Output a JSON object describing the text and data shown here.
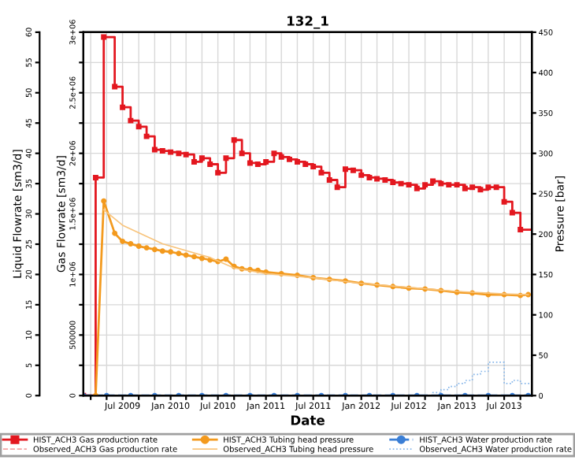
{
  "chart_data": {
    "type": "line",
    "title": "132_1",
    "xlabel": "Date",
    "ylabel": "Gas Flowrate [sm3/d]",
    "y2label": "Pressure [bar]",
    "y3label": "Liquid Flowrate [sm3/d]",
    "xlim": [
      "2009-02-01",
      "2013-10-15"
    ],
    "xticks": [
      {
        "value": "2009-03",
        "label": null
      },
      {
        "value": "2009-05",
        "label": null
      },
      {
        "value": "2009-07",
        "label": "Jul 2009"
      },
      {
        "value": "2009-09",
        "label": null
      },
      {
        "value": "2009-11",
        "label": null
      },
      {
        "value": "2010-01",
        "label": "Jan 2010"
      },
      {
        "value": "2010-03",
        "label": null
      },
      {
        "value": "2010-05",
        "label": null
      },
      {
        "value": "2010-07",
        "label": "Jul 2010"
      },
      {
        "value": "2010-09",
        "label": null
      },
      {
        "value": "2010-11",
        "label": null
      },
      {
        "value": "2011-01",
        "label": "Jan 2011"
      },
      {
        "value": "2011-03",
        "label": null
      },
      {
        "value": "2011-05",
        "label": null
      },
      {
        "value": "2011-07",
        "label": "Jul 2011"
      },
      {
        "value": "2011-09",
        "label": null
      },
      {
        "value": "2011-11",
        "label": null
      },
      {
        "value": "2012-01",
        "label": "Jan 2012"
      },
      {
        "value": "2012-03",
        "label": null
      },
      {
        "value": "2012-05",
        "label": null
      },
      {
        "value": "2012-07",
        "label": "Jul 2012"
      },
      {
        "value": "2012-09",
        "label": null
      },
      {
        "value": "2012-11",
        "label": null
      },
      {
        "value": "2013-01",
        "label": "Jan 2013"
      },
      {
        "value": "2013-03",
        "label": null
      },
      {
        "value": "2013-05",
        "label": null
      },
      {
        "value": "2013-07",
        "label": "Jul 2013"
      },
      {
        "value": "2013-09",
        "label": null
      }
    ],
    "ylim": [
      0,
      3000000
    ],
    "yticks": [
      0,
      {
        "value": 250000,
        "label": null
      },
      500000,
      {
        "value": 750000,
        "label": null
      },
      {
        "value": 1000000,
        "label": "1e+06"
      },
      {
        "value": 1250000,
        "label": null
      },
      {
        "value": 1500000,
        "label": "1.5e+06"
      },
      {
        "value": 1750000,
        "label": null
      },
      {
        "value": 2000000,
        "label": "2e+06"
      },
      {
        "value": 2250000,
        "label": null
      },
      {
        "value": 2500000,
        "label": "2.5e+06"
      },
      {
        "value": 2750000,
        "label": null
      },
      {
        "value": 3000000,
        "label": "3e+06"
      }
    ],
    "y2lim": [
      0,
      450
    ],
    "y2ticks": [
      0,
      50,
      100,
      150,
      200,
      250,
      300,
      350,
      400,
      450
    ],
    "y3lim": [
      0,
      60
    ],
    "y3ticks": [
      0,
      5,
      10,
      15,
      20,
      25,
      30,
      35,
      40,
      45,
      50,
      55,
      60
    ],
    "grid": true,
    "legend": "bottom",
    "series": [
      {
        "name": "HIST_ACH3 Gas production rate",
        "type": "step",
        "axis": "y",
        "color": "#e3171f",
        "marker": "square",
        "line_style": "solid",
        "x": [
          "2009-02-01",
          "2009-03-20",
          "2009-04-20",
          "2009-06-01",
          "2009-07",
          "2009-08",
          "2009-09",
          "2009-10",
          "2009-11",
          "2009-12",
          "2010-01",
          "2010-02",
          "2010-03",
          "2010-04",
          "2010-05",
          "2010-06",
          "2010-07",
          "2010-08",
          "2010-09",
          "2010-10",
          "2010-11",
          "2010-12",
          "2011-01",
          "2011-02",
          "2011-03",
          "2011-04",
          "2011-05",
          "2011-06",
          "2011-07",
          "2011-08",
          "2011-09",
          "2011-10",
          "2011-11",
          "2011-12",
          "2012-01",
          "2012-02",
          "2012-03",
          "2012-04",
          "2012-05",
          "2012-06",
          "2012-07",
          "2012-08",
          "2012-09",
          "2012-10",
          "2012-11",
          "2012-12",
          "2013-01",
          "2013-02",
          "2013-03",
          "2013-04",
          "2013-05",
          "2013-06",
          "2013-07",
          "2013-08",
          "2013-09",
          "2013-10-15"
        ],
        "values": [
          0,
          1800000,
          2960000,
          2550000,
          2380000,
          2270000,
          2220000,
          2140000,
          2030000,
          2020000,
          2010000,
          2000000,
          1990000,
          1930000,
          1960000,
          1910000,
          1840000,
          1960000,
          2110000,
          2000000,
          1920000,
          1910000,
          1930000,
          2000000,
          1970000,
          1950000,
          1930000,
          1910000,
          1890000,
          1840000,
          1780000,
          1720000,
          1870000,
          1860000,
          1820000,
          1800000,
          1790000,
          1780000,
          1760000,
          1750000,
          1740000,
          1710000,
          1740000,
          1770000,
          1750000,
          1740000,
          1740000,
          1710000,
          1720000,
          1700000,
          1720000,
          1720000,
          1600000,
          1510000,
          1370000,
          1370000
        ]
      },
      {
        "name": "Observed_ACH3 Gas production rate",
        "axis": "y",
        "color": "#f4a3a3",
        "marker": "none",
        "line_style": "dashed"
      },
      {
        "name": "HIST_ACH3 Tubing head pressure",
        "axis": "y2",
        "color": "#f39a1e",
        "marker": "circle",
        "line_style": "solid",
        "x": [
          "2009-03-20",
          "2009-04-20",
          "2009-06",
          "2009-07",
          "2009-08",
          "2009-09",
          "2009-10",
          "2009-11",
          "2009-12",
          "2010-01",
          "2010-02",
          "2010-03",
          "2010-04",
          "2010-05",
          "2010-06",
          "2010-07",
          "2010-08",
          "2010-09",
          "2010-10",
          "2010-11",
          "2010-12",
          "2011-01",
          "2011-03",
          "2011-05",
          "2011-07",
          "2011-09",
          "2011-11",
          "2012-01",
          "2012-03",
          "2012-05",
          "2012-07",
          "2012-09",
          "2012-11",
          "2013-01",
          "2013-03",
          "2013-05",
          "2013-07",
          "2013-09",
          "2013-10"
        ],
        "values": [
          0,
          241,
          201,
          191,
          188,
          185,
          183,
          181,
          179,
          178,
          176,
          174,
          172,
          170,
          168,
          166,
          169,
          160,
          157,
          156,
          155,
          153,
          151,
          149,
          146,
          144,
          142,
          139,
          137,
          135,
          133,
          132,
          130,
          128,
          127,
          125,
          125,
          124,
          125
        ]
      },
      {
        "name": "Observed_ACH3 Tubing head pressure",
        "axis": "y2",
        "color": "#f8c47c",
        "marker": "none",
        "line_style": "solid",
        "x": [
          "2009-04-20",
          "2009-07",
          "2009-12",
          "2010-06",
          "2010-09",
          "2011-01",
          "2011-07",
          "2012-01",
          "2012-07",
          "2013-01",
          "2013-07",
          "2013-10"
        ],
        "values": [
          230,
          211,
          188,
          171,
          158,
          151,
          146,
          139,
          134,
          129,
          126,
          125
        ]
      },
      {
        "name": "HIST_ACH3 Water production rate",
        "axis": "y3",
        "color": "#3b7fd6",
        "marker": "circle",
        "line_style": "dashed",
        "x": [
          "2009-02",
          "2009-05",
          "2009-08",
          "2009-11",
          "2010-02",
          "2010-05",
          "2010-08",
          "2010-11",
          "2011-02",
          "2011-05",
          "2011-08",
          "2011-11",
          "2012-02",
          "2012-05",
          "2012-08",
          "2012-11",
          "2013-02",
          "2013-05",
          "2013-08",
          "2013-10"
        ],
        "values": [
          0,
          0,
          0,
          0,
          0,
          0,
          0,
          0,
          0,
          0,
          0,
          0,
          0,
          0,
          0,
          0,
          0,
          0,
          0,
          0
        ]
      },
      {
        "name": "Observed_ACH3 Water production rate",
        "type": "step",
        "axis": "y3",
        "color": "#86b6ea",
        "marker": "none",
        "line_style": "dotted",
        "x": [
          "2012-09",
          "2012-10",
          "2012-11",
          "2012-12",
          "2013-01",
          "2013-02",
          "2013-03",
          "2013-04",
          "2013-05",
          "2013-06",
          "2013-07",
          "2013-08",
          "2013-09",
          "2013-10-15"
        ],
        "values": [
          0,
          0.5,
          1,
          1.5,
          2,
          2.5,
          3.5,
          4,
          5.5,
          5.5,
          2,
          2.5,
          2,
          2
        ]
      }
    ]
  }
}
